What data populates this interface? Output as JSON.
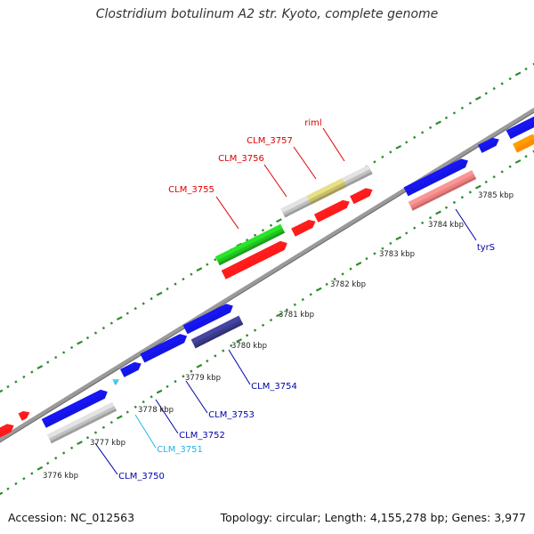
{
  "title": "Clostridium botulinum A2 str. Kyoto, complete genome",
  "footer": {
    "accession": "Accession: NC_012563",
    "summary": "Topology: circular; Length: 4,155,278 bp; Genes: 3,977"
  },
  "colors": {
    "backbone": "#7a7a7a",
    "dotted_track": "#2e8b2e",
    "cds": "#1414e6",
    "rrna_like": "#ff1a1a",
    "pseudo_grey": "#c0c0c0",
    "green_feature": "#22c322",
    "olive_feature": "#c8be6e",
    "pink_feature": "#f08080",
    "navy_feature": "#3b3b8c",
    "orange_feature": "#ff8c00",
    "cyan_feature": "#40c0e0",
    "label_red": "#dd0000",
    "label_blue": "#0000aa",
    "label_cyan": "#1eb4e6"
  },
  "scale_ticks": [
    {
      "label": "3776 kbp"
    },
    {
      "label": "3777 kbp"
    },
    {
      "label": "3778 kbp"
    },
    {
      "label": "3779 kbp"
    },
    {
      "label": "3780 kbp"
    },
    {
      "label": "3781 kbp"
    },
    {
      "label": "3782 kbp"
    },
    {
      "label": "3783 kbp"
    },
    {
      "label": "3784 kbp"
    },
    {
      "label": "3785 kbp"
    }
  ],
  "gene_labels": [
    {
      "name": "riml",
      "color": "#dd0000"
    },
    {
      "name": "CLM_3757",
      "color": "#dd0000"
    },
    {
      "name": "CLM_3756",
      "color": "#dd0000"
    },
    {
      "name": "CLM_3755",
      "color": "#dd0000"
    },
    {
      "name": "tyrS",
      "color": "#0000aa"
    },
    {
      "name": "CLM_3754",
      "color": "#0000aa"
    },
    {
      "name": "CLM_3753",
      "color": "#0000aa"
    },
    {
      "name": "CLM_3752",
      "color": "#0000aa"
    },
    {
      "name": "CLM_3751",
      "color": "#1eb4e6"
    },
    {
      "name": "CLM_3750",
      "color": "#0000aa"
    }
  ]
}
